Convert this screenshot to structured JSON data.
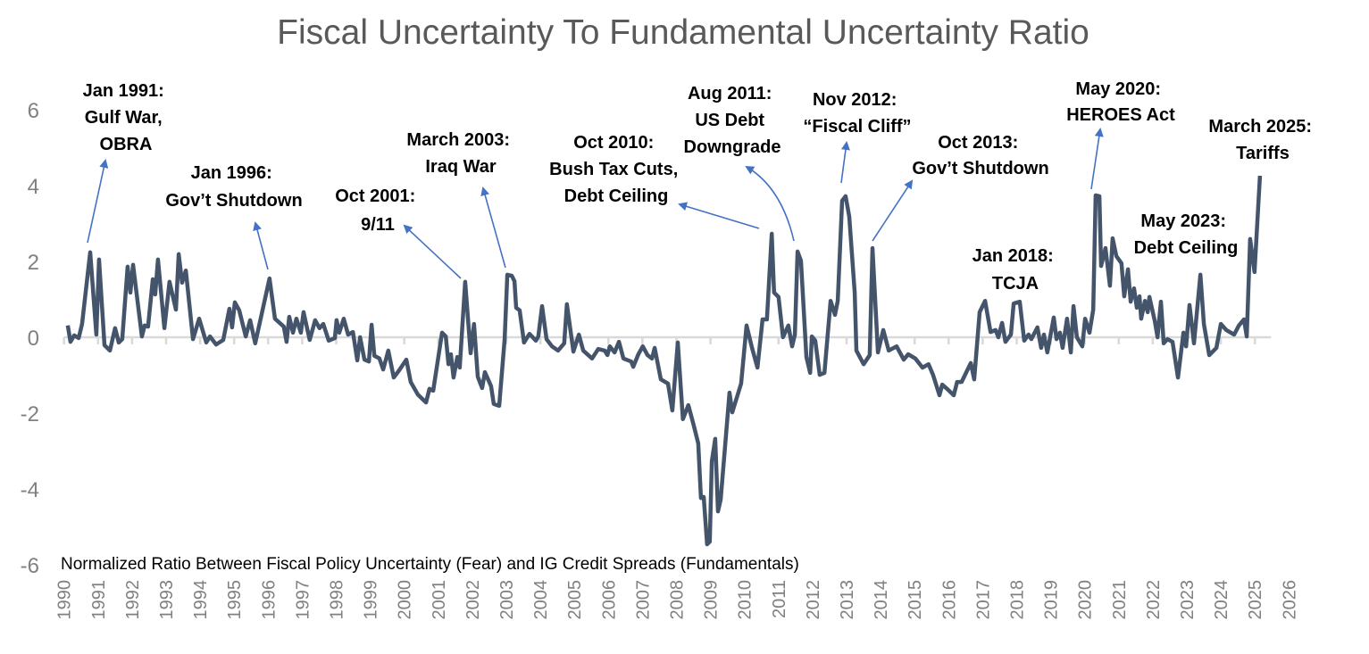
{
  "chart_data": {
    "type": "line",
    "title": "Fiscal Uncertainty To Fundamental Uncertainty Ratio",
    "subtitle": "Normalized Ratio Between Fiscal Policy Uncertainty (Fear) and IG Credit Spreads (Fundamentals)",
    "xlabel": "",
    "ylabel": "",
    "xlim": [
      1990,
      2026
    ],
    "ylim": [
      -6,
      6
    ],
    "y_ticks": [
      "6",
      "4",
      "2",
      "0",
      "-2",
      "-4",
      "-6"
    ],
    "y_tick_values": [
      6,
      4,
      2,
      0,
      -2,
      -4,
      -6
    ],
    "x_ticks": [
      "1990",
      "1991",
      "1992",
      "1993",
      "1994",
      "1995",
      "1996",
      "1997",
      "1998",
      "1999",
      "2000",
      "2001",
      "2002",
      "2003",
      "2004",
      "2005",
      "2006",
      "2007",
      "2008",
      "2009",
      "2010",
      "2011",
      "2012",
      "2013",
      "2014",
      "2015",
      "2016",
      "2017",
      "2018",
      "2019",
      "2020",
      "2021",
      "2022",
      "2023",
      "2024",
      "2025",
      "2026"
    ],
    "grid": false,
    "zero_line": true,
    "legend": "none",
    "line_color": "#44546a",
    "arrow_color": "#4472c4",
    "series": [
      {
        "points": [
          [
            1990.11,
            0.31
          ],
          [
            1990.19,
            -0.12
          ],
          [
            1990.3,
            0.05
          ],
          [
            1990.43,
            -0.02
          ],
          [
            1990.53,
            0.35
          ],
          [
            1990.77,
            2.24
          ],
          [
            1990.95,
            0.07
          ],
          [
            1991.03,
            2.05
          ],
          [
            1991.19,
            -0.21
          ],
          [
            1991.35,
            -0.35
          ],
          [
            1991.5,
            0.24
          ],
          [
            1991.61,
            -0.14
          ],
          [
            1991.71,
            -0.05
          ],
          [
            1991.87,
            1.86
          ],
          [
            1991.95,
            1.18
          ],
          [
            1992.03,
            1.91
          ],
          [
            1992.29,
            0.02
          ],
          [
            1992.37,
            0.31
          ],
          [
            1992.47,
            0.28
          ],
          [
            1992.61,
            1.53
          ],
          [
            1992.68,
            1.13
          ],
          [
            1992.76,
            2.05
          ],
          [
            1992.95,
            0.24
          ],
          [
            1993.1,
            1.46
          ],
          [
            1993.29,
            0.73
          ],
          [
            1993.37,
            2.19
          ],
          [
            1993.47,
            1.44
          ],
          [
            1993.58,
            1.76
          ],
          [
            1993.79,
            -0.05
          ],
          [
            1993.97,
            0.49
          ],
          [
            1994.18,
            -0.14
          ],
          [
            1994.29,
            0.02
          ],
          [
            1994.47,
            -0.19
          ],
          [
            1994.68,
            -0.07
          ],
          [
            1994.86,
            0.75
          ],
          [
            1994.94,
            0.26
          ],
          [
            1995.02,
            0.92
          ],
          [
            1995.15,
            0.71
          ],
          [
            1995.34,
            0.02
          ],
          [
            1995.47,
            0.45
          ],
          [
            1995.62,
            -0.16
          ],
          [
            1996.04,
            1.55
          ],
          [
            1996.2,
            0.49
          ],
          [
            1996.46,
            0.28
          ],
          [
            1996.54,
            -0.12
          ],
          [
            1996.62,
            0.54
          ],
          [
            1996.73,
            0.12
          ],
          [
            1996.83,
            0.49
          ],
          [
            1996.96,
            0.12
          ],
          [
            1997.04,
            0.66
          ],
          [
            1997.22,
            -0.07
          ],
          [
            1997.38,
            0.45
          ],
          [
            1997.51,
            0.24
          ],
          [
            1997.62,
            0.35
          ],
          [
            1997.78,
            -0.09
          ],
          [
            1997.96,
            -0.02
          ],
          [
            1998.01,
            0.45
          ],
          [
            1998.09,
            0.12
          ],
          [
            1998.22,
            0.49
          ],
          [
            1998.35,
            0.07
          ],
          [
            1998.49,
            0.14
          ],
          [
            1998.62,
            -0.61
          ],
          [
            1998.7,
            0.0
          ],
          [
            1998.83,
            -0.59
          ],
          [
            1998.96,
            -0.64
          ],
          [
            1999.04,
            0.33
          ],
          [
            1999.12,
            -0.49
          ],
          [
            1999.27,
            -0.56
          ],
          [
            1999.38,
            -0.85
          ],
          [
            1999.53,
            -0.35
          ],
          [
            1999.69,
            -1.06
          ],
          [
            1999.85,
            -0.87
          ],
          [
            2000.06,
            -0.59
          ],
          [
            2000.19,
            -1.18
          ],
          [
            2000.4,
            -1.51
          ],
          [
            2000.64,
            -1.72
          ],
          [
            2000.74,
            -1.36
          ],
          [
            2000.85,
            -1.41
          ],
          [
            2001.11,
            0.12
          ],
          [
            2001.22,
            0.02
          ],
          [
            2001.3,
            -0.71
          ],
          [
            2001.37,
            -0.45
          ],
          [
            2001.45,
            -1.06
          ],
          [
            2001.56,
            -0.52
          ],
          [
            2001.63,
            -0.8
          ],
          [
            2001.79,
            1.46
          ],
          [
            2001.95,
            -0.42
          ],
          [
            2002.05,
            0.35
          ],
          [
            2002.16,
            -1.04
          ],
          [
            2002.29,
            -1.34
          ],
          [
            2002.37,
            -0.92
          ],
          [
            2002.55,
            -1.29
          ],
          [
            2002.63,
            -1.76
          ],
          [
            2002.79,
            -1.81
          ],
          [
            2002.95,
            -0.05
          ],
          [
            2003.03,
            1.65
          ],
          [
            2003.16,
            1.62
          ],
          [
            2003.24,
            1.48
          ],
          [
            2003.29,
            0.78
          ],
          [
            2003.39,
            0.71
          ],
          [
            2003.52,
            -0.14
          ],
          [
            2003.68,
            0.09
          ],
          [
            2003.87,
            -0.09
          ],
          [
            2003.94,
            0.02
          ],
          [
            2004.05,
            0.82
          ],
          [
            2004.18,
            -0.05
          ],
          [
            2004.34,
            -0.24
          ],
          [
            2004.52,
            -0.35
          ],
          [
            2004.7,
            -0.16
          ],
          [
            2004.78,
            0.87
          ],
          [
            2004.97,
            -0.38
          ],
          [
            2005.13,
            0.07
          ],
          [
            2005.26,
            -0.35
          ],
          [
            2005.52,
            -0.56
          ],
          [
            2005.7,
            -0.31
          ],
          [
            2005.89,
            -0.35
          ],
          [
            2005.97,
            -0.47
          ],
          [
            2006.04,
            -0.24
          ],
          [
            2006.18,
            -0.4
          ],
          [
            2006.31,
            -0.12
          ],
          [
            2006.44,
            -0.56
          ],
          [
            2006.67,
            -0.64
          ],
          [
            2006.73,
            -0.78
          ],
          [
            2006.88,
            -0.45
          ],
          [
            2007.01,
            -0.24
          ],
          [
            2007.15,
            -0.47
          ],
          [
            2007.28,
            -0.56
          ],
          [
            2007.36,
            -0.28
          ],
          [
            2007.54,
            -1.11
          ],
          [
            2007.75,
            -1.22
          ],
          [
            2007.88,
            -1.93
          ],
          [
            2008.04,
            -0.14
          ],
          [
            2008.19,
            -2.16
          ],
          [
            2008.35,
            -1.79
          ],
          [
            2008.51,
            -2.33
          ],
          [
            2008.64,
            -2.8
          ],
          [
            2008.72,
            -4.24
          ],
          [
            2008.8,
            -4.21
          ],
          [
            2008.9,
            -5.46
          ],
          [
            2008.98,
            -5.39
          ],
          [
            2009.04,
            -3.27
          ],
          [
            2009.14,
            -2.68
          ],
          [
            2009.22,
            -4.59
          ],
          [
            2009.3,
            -4.28
          ],
          [
            2009.56,
            -1.46
          ],
          [
            2009.64,
            -1.98
          ],
          [
            2009.9,
            -1.22
          ],
          [
            2010.06,
            0.31
          ],
          [
            2010.22,
            -0.28
          ],
          [
            2010.38,
            -0.8
          ],
          [
            2010.53,
            0.47
          ],
          [
            2010.66,
            0.47
          ],
          [
            2010.8,
            2.73
          ],
          [
            2010.87,
            1.18
          ],
          [
            2011.0,
            1.06
          ],
          [
            2011.13,
            0.0
          ],
          [
            2011.29,
            0.31
          ],
          [
            2011.4,
            -0.24
          ],
          [
            2011.48,
            0.07
          ],
          [
            2011.56,
            2.26
          ],
          [
            2011.66,
            2.02
          ],
          [
            2011.82,
            -0.52
          ],
          [
            2011.93,
            -0.94
          ],
          [
            2011.98,
            0.02
          ],
          [
            2012.08,
            -0.09
          ],
          [
            2012.21,
            -0.99
          ],
          [
            2012.35,
            -0.94
          ],
          [
            2012.53,
            0.96
          ],
          [
            2012.66,
            0.59
          ],
          [
            2012.74,
            0.96
          ],
          [
            2012.87,
            3.6
          ],
          [
            2012.97,
            3.72
          ],
          [
            2013.08,
            3.18
          ],
          [
            2013.24,
            1.18
          ],
          [
            2013.29,
            -0.35
          ],
          [
            2013.5,
            -0.71
          ],
          [
            2013.68,
            -0.47
          ],
          [
            2013.76,
            2.35
          ],
          [
            2013.92,
            -0.4
          ],
          [
            2014.08,
            0.19
          ],
          [
            2014.24,
            -0.35
          ],
          [
            2014.47,
            -0.24
          ],
          [
            2014.68,
            -0.59
          ],
          [
            2014.81,
            -0.45
          ],
          [
            2015.02,
            -0.56
          ],
          [
            2015.23,
            -0.8
          ],
          [
            2015.41,
            -0.71
          ],
          [
            2015.54,
            -0.99
          ],
          [
            2015.73,
            -1.53
          ],
          [
            2015.81,
            -1.25
          ],
          [
            2015.99,
            -1.39
          ],
          [
            2016.15,
            -1.53
          ],
          [
            2016.25,
            -1.18
          ],
          [
            2016.38,
            -1.18
          ],
          [
            2016.65,
            -0.68
          ],
          [
            2016.75,
            -1.11
          ],
          [
            2016.91,
            0.66
          ],
          [
            2017.07,
            0.96
          ],
          [
            2017.23,
            0.14
          ],
          [
            2017.38,
            0.19
          ],
          [
            2017.46,
            0.0
          ],
          [
            2017.57,
            0.38
          ],
          [
            2017.67,
            -0.12
          ],
          [
            2017.83,
            0.07
          ],
          [
            2017.91,
            0.89
          ],
          [
            2018.09,
            0.94
          ],
          [
            2018.22,
            -0.09
          ],
          [
            2018.35,
            0.07
          ],
          [
            2018.43,
            -0.05
          ],
          [
            2018.61,
            0.26
          ],
          [
            2018.72,
            -0.28
          ],
          [
            2018.8,
            0.07
          ],
          [
            2018.9,
            -0.4
          ],
          [
            2019.09,
            0.52
          ],
          [
            2019.17,
            -0.05
          ],
          [
            2019.27,
            0.12
          ],
          [
            2019.35,
            -0.28
          ],
          [
            2019.48,
            0.49
          ],
          [
            2019.59,
            -0.4
          ],
          [
            2019.67,
            0.82
          ],
          [
            2019.77,
            0.0
          ],
          [
            2019.93,
            -0.24
          ],
          [
            2020.01,
            0.49
          ],
          [
            2020.14,
            0.12
          ],
          [
            2020.25,
            0.73
          ],
          [
            2020.32,
            3.74
          ],
          [
            2020.43,
            3.72
          ],
          [
            2020.48,
            1.88
          ],
          [
            2020.61,
            2.35
          ],
          [
            2020.74,
            1.36
          ],
          [
            2020.82,
            2.61
          ],
          [
            2020.93,
            2.14
          ],
          [
            2021.08,
            1.95
          ],
          [
            2021.16,
            1.08
          ],
          [
            2021.27,
            1.79
          ],
          [
            2021.35,
            0.94
          ],
          [
            2021.45,
            1.29
          ],
          [
            2021.53,
            0.78
          ],
          [
            2021.61,
            1.08
          ],
          [
            2021.66,
            0.49
          ],
          [
            2021.77,
            0.96
          ],
          [
            2021.85,
            0.66
          ],
          [
            2021.9,
            1.06
          ],
          [
            2022.06,
            0.42
          ],
          [
            2022.14,
            0.0
          ],
          [
            2022.24,
            0.94
          ],
          [
            2022.32,
            -0.16
          ],
          [
            2022.43,
            -0.05
          ],
          [
            2022.58,
            -0.12
          ],
          [
            2022.74,
            -1.06
          ],
          [
            2022.9,
            0.12
          ],
          [
            2022.98,
            -0.24
          ],
          [
            2023.08,
            0.85
          ],
          [
            2023.21,
            -0.16
          ],
          [
            2023.4,
            1.65
          ],
          [
            2023.5,
            0.35
          ],
          [
            2023.66,
            -0.47
          ],
          [
            2023.87,
            -0.28
          ],
          [
            2024.0,
            0.35
          ],
          [
            2024.16,
            0.19
          ],
          [
            2024.39,
            0.07
          ],
          [
            2024.53,
            0.31
          ],
          [
            2024.68,
            0.47
          ],
          [
            2024.76,
            0.02
          ],
          [
            2024.86,
            2.59
          ],
          [
            2024.99,
            1.72
          ],
          [
            2025.15,
            4.26
          ]
        ]
      }
    ],
    "annotations": [
      {
        "lines": [
          "Jan 1991:",
          "Gulf War,",
          "OBRA"
        ]
      },
      {
        "lines": [
          "Jan 1996:",
          "Gov’t Shutdown"
        ]
      },
      {
        "lines": [
          "Oct 2001:",
          "9/11"
        ]
      },
      {
        "lines": [
          "March 2003:",
          "Iraq War"
        ]
      },
      {
        "lines": [
          "Oct 2010:",
          "Bush Tax Cuts,",
          "Debt Ceiling"
        ]
      },
      {
        "lines": [
          "Aug 2011:",
          "US Debt",
          "Downgrade"
        ]
      },
      {
        "lines": [
          "Nov 2012:",
          "“Fiscal Cliff”"
        ]
      },
      {
        "lines": [
          "Oct 2013:",
          "Gov’t Shutdown"
        ]
      },
      {
        "lines": [
          "Jan 2018:",
          "TCJA"
        ]
      },
      {
        "lines": [
          "May 2020:",
          "HEROES Act"
        ]
      },
      {
        "lines": [
          "May 2023:",
          "Debt Ceiling"
        ]
      },
      {
        "lines": [
          "March 2025:",
          "Tariffs"
        ]
      }
    ]
  }
}
